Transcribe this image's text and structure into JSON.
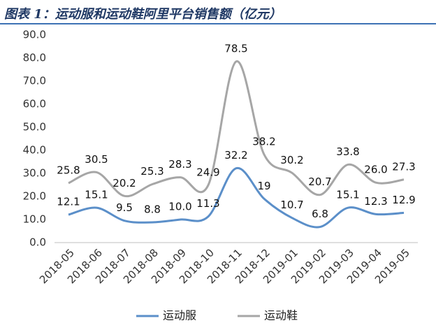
{
  "chart_data": {
    "type": "line",
    "title": "图表 1：运动服和运动鞋阿里平台销售额（亿元）",
    "categories": [
      "2018-05",
      "2018-06",
      "2018-07",
      "2018-08",
      "2018-09",
      "2018-10",
      "2018-11",
      "2018-12",
      "2019-01",
      "2019-02",
      "2019-03",
      "2019-04",
      "2019-05"
    ],
    "series": [
      {
        "name": "运动服",
        "color": "#5b8fc9",
        "values": [
          12.1,
          15.1,
          9.5,
          8.8,
          10.0,
          11.3,
          32.2,
          19,
          10.7,
          6.8,
          15.1,
          12.3,
          12.9
        ],
        "value_labels": [
          "12.1",
          "15.1",
          "9.5",
          "8.8",
          "10.0",
          "11.3",
          "32.2",
          "19",
          "10.7",
          "6.8",
          "15.1",
          "12.3",
          "12.9"
        ]
      },
      {
        "name": "运动鞋",
        "color": "#a6a6a6",
        "values": [
          25.8,
          30.5,
          20.2,
          25.3,
          28.3,
          24.9,
          78.5,
          38.2,
          30.2,
          20.7,
          33.8,
          26.0,
          27.3
        ],
        "value_labels": [
          "25.8",
          "30.5",
          "20.2",
          "25.3",
          "28.3",
          "24.9",
          "78.5",
          "38.2",
          "30.2",
          "20.7",
          "33.8",
          "26.0",
          "27.3"
        ]
      }
    ],
    "ylim": [
      0,
      90
    ],
    "yticks": [
      {
        "value": 0,
        "label": "0.0"
      },
      {
        "value": 10,
        "label": "10.0"
      },
      {
        "value": 20,
        "label": "20.0"
      },
      {
        "value": 30,
        "label": "30.0"
      },
      {
        "value": 40,
        "label": "40.0"
      },
      {
        "value": 50,
        "label": "50.0"
      },
      {
        "value": 60,
        "label": "60.0"
      },
      {
        "value": 70,
        "label": "70.0"
      },
      {
        "value": 80,
        "label": "80.0"
      },
      {
        "value": 90,
        "label": "90.0"
      }
    ],
    "grid": false,
    "legend": "bottom"
  }
}
